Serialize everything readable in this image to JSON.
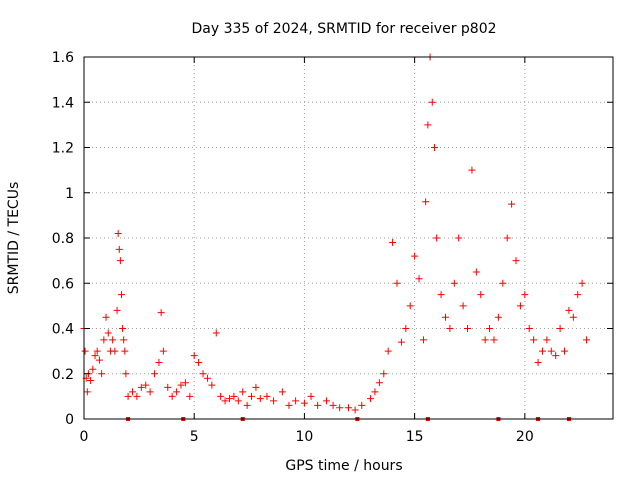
{
  "chart_data": {
    "type": "scatter",
    "title": "Day 335 of 2024, SRMTID for receiver p802",
    "xlabel": "GPS time / hours",
    "ylabel": "SRMTID / TECUs",
    "xlim": [
      0,
      24
    ],
    "ylim": [
      0,
      1.6
    ],
    "xticks": [
      0,
      5,
      10,
      15,
      20
    ],
    "xtick_labels": [
      "0",
      "5",
      "10",
      "15",
      "20"
    ],
    "yticks": [
      0,
      0.2,
      0.4,
      0.6,
      0.8,
      1,
      1.2,
      1.4,
      1.6
    ],
    "ytick_labels": [
      "0",
      "0.2",
      "0.4",
      "0.6",
      "0.8",
      "1",
      "1.2",
      "1.4",
      "1.6"
    ],
    "grid": true,
    "marker": "+",
    "marker_color": "#ff0000",
    "series": [
      {
        "name": "SRMTID",
        "x": [
          0.0,
          0.05,
          0.1,
          0.15,
          0.2,
          0.3,
          0.4,
          0.5,
          0.6,
          0.7,
          0.8,
          0.9,
          1.0,
          1.1,
          1.2,
          1.3,
          1.4,
          1.5,
          1.55,
          1.6,
          1.65,
          1.7,
          1.75,
          1.8,
          1.85,
          1.9,
          2.0,
          2.2,
          2.4,
          2.6,
          2.8,
          3.0,
          3.2,
          3.4,
          3.5,
          3.6,
          3.8,
          4.0,
          4.2,
          4.4,
          4.6,
          4.8,
          5.0,
          5.2,
          5.4,
          5.6,
          5.8,
          6.0,
          6.2,
          6.4,
          6.6,
          6.8,
          7.0,
          7.2,
          7.4,
          7.6,
          7.8,
          8.0,
          8.3,
          8.6,
          9.0,
          9.3,
          9.6,
          10.0,
          10.3,
          10.6,
          11.0,
          11.3,
          11.6,
          12.0,
          12.3,
          12.6,
          13.0,
          13.2,
          13.4,
          13.6,
          13.8,
          14.0,
          14.2,
          14.4,
          14.6,
          14.8,
          15.0,
          15.2,
          15.4,
          15.5,
          15.6,
          15.7,
          15.8,
          15.9,
          16.0,
          16.2,
          16.4,
          16.6,
          16.8,
          17.0,
          17.2,
          17.4,
          17.6,
          17.8,
          18.0,
          18.2,
          18.4,
          18.6,
          18.8,
          19.0,
          19.2,
          19.4,
          19.6,
          19.8,
          20.0,
          20.2,
          20.4,
          20.6,
          20.8,
          21.0,
          21.2,
          21.4,
          21.6,
          21.8,
          22.0,
          22.2,
          22.4,
          22.6,
          22.8
        ],
        "y": [
          0.4,
          0.3,
          0.18,
          0.12,
          0.2,
          0.17,
          0.22,
          0.28,
          0.3,
          0.26,
          0.2,
          0.35,
          0.45,
          0.38,
          0.3,
          0.35,
          0.3,
          0.48,
          0.82,
          0.75,
          0.7,
          0.55,
          0.4,
          0.35,
          0.3,
          0.2,
          0.1,
          0.12,
          0.1,
          0.14,
          0.15,
          0.12,
          0.2,
          0.25,
          0.47,
          0.3,
          0.14,
          0.1,
          0.12,
          0.15,
          0.16,
          0.1,
          0.28,
          0.25,
          0.2,
          0.18,
          0.15,
          0.38,
          0.1,
          0.08,
          0.09,
          0.1,
          0.08,
          0.12,
          0.06,
          0.1,
          0.14,
          0.09,
          0.1,
          0.08,
          0.12,
          0.06,
          0.08,
          0.07,
          0.1,
          0.06,
          0.08,
          0.06,
          0.05,
          0.05,
          0.04,
          0.06,
          0.09,
          0.12,
          0.16,
          0.2,
          0.3,
          0.78,
          0.6,
          0.34,
          0.4,
          0.5,
          0.72,
          0.62,
          0.35,
          0.96,
          1.3,
          1.6,
          1.4,
          1.2,
          0.8,
          0.55,
          0.45,
          0.4,
          0.6,
          0.8,
          0.5,
          0.4,
          1.1,
          0.65,
          0.55,
          0.35,
          0.4,
          0.35,
          0.45,
          0.6,
          0.8,
          0.95,
          0.7,
          0.5,
          0.55,
          0.4,
          0.35,
          0.25,
          0.3,
          0.35,
          0.3,
          0.28,
          0.4,
          0.3,
          0.48,
          0.45,
          0.55,
          0.6,
          0.35
        ]
      }
    ],
    "axis_markers_x": [
      2.0,
      4.5,
      7.2,
      12.4,
      15.6,
      18.8,
      20.6,
      22.0
    ]
  }
}
